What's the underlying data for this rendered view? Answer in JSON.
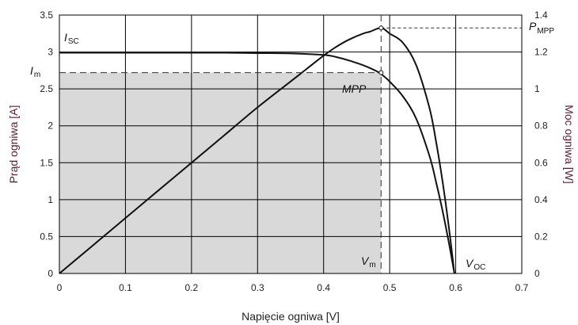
{
  "chart_data": {
    "type": "line",
    "xlabel": "Napięcie ogniwa [V]",
    "ylabel": "Prąd ogniwa [A]",
    "y2label": "Moc ogniwa [W]",
    "xlim": [
      0,
      0.7
    ],
    "ylim": [
      0,
      3.5
    ],
    "y2lim": [
      0,
      1.4
    ],
    "x_ticks": [
      "0",
      "0.1",
      "0.2",
      "0.3",
      "0.4",
      "0.5",
      "0.6",
      "0.7"
    ],
    "y_ticks": [
      "0",
      "0.5",
      "1",
      "1.5",
      "2",
      "2.5",
      "3",
      "3.5"
    ],
    "y2_ticks": [
      "0",
      "0.2",
      "0.4",
      "0.6",
      "0.8",
      "1",
      "1.2",
      "1.4"
    ],
    "grid": true,
    "series": [
      {
        "axis": "left",
        "x": [
          0,
          0.05,
          0.1,
          0.15,
          0.2,
          0.25,
          0.3,
          0.35,
          0.4,
          0.42,
          0.44,
          0.46,
          0.48,
          0.49,
          0.5,
          0.52,
          0.54,
          0.56,
          0.57,
          0.58,
          0.59,
          0.598
        ],
        "y": [
          2.99,
          2.99,
          2.99,
          2.99,
          2.99,
          2.99,
          2.985,
          2.98,
          2.96,
          2.93,
          2.88,
          2.82,
          2.74,
          2.68,
          2.6,
          2.4,
          2.1,
          1.6,
          1.25,
          0.85,
          0.4,
          0
        ]
      },
      {
        "axis": "right",
        "x": [
          0,
          0.05,
          0.1,
          0.15,
          0.2,
          0.25,
          0.3,
          0.35,
          0.4,
          0.42,
          0.44,
          0.46,
          0.47,
          0.487,
          0.5,
          0.52,
          0.54,
          0.56,
          0.57,
          0.58,
          0.59,
          0.598
        ],
        "y": [
          0,
          0.15,
          0.3,
          0.45,
          0.6,
          0.75,
          0.9,
          1.04,
          1.18,
          1.23,
          1.27,
          1.3,
          1.31,
          1.33,
          1.3,
          1.25,
          1.13,
          0.9,
          0.72,
          0.5,
          0.24,
          0
        ]
      }
    ],
    "annotations": {
      "isc": "I",
      "isc_sub": "SC",
      "im": "I",
      "im_sub": "m",
      "mpp": "MPP",
      "pmpp": "P",
      "pmpp_sub": "MPP",
      "vm": "V",
      "vm_sub": "m",
      "voc": "V",
      "voc_sub": "OC"
    },
    "mpp_point": {
      "v": 0.487,
      "i": 2.72,
      "p": 1.33
    },
    "colors": {
      "curve": "#111111",
      "grid": "#000000",
      "shade": "#d9d9d9",
      "axis_title": "#5a1e32"
    }
  }
}
